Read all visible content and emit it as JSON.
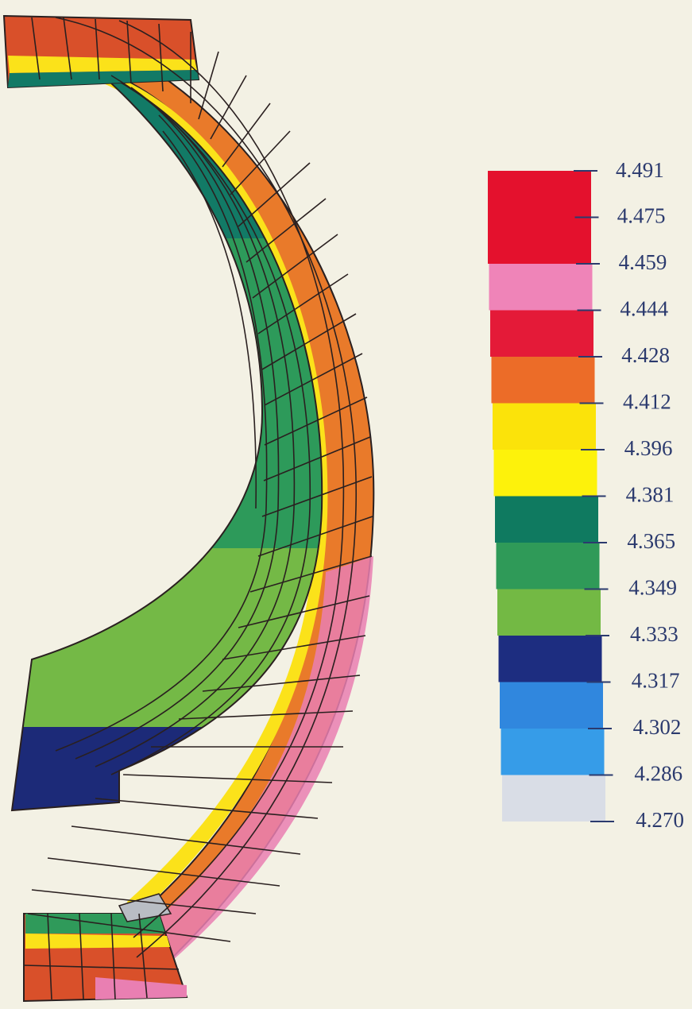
{
  "legend": {
    "values": [
      "4.491",
      "4.475",
      "4.459",
      "4.444",
      "4.428",
      "4.412",
      "4.396",
      "4.381",
      "4.365",
      "4.349",
      "4.333",
      "4.317",
      "4.302",
      "4.286",
      "4.270"
    ],
    "band_colors": [
      "#e4112d",
      "#ef84b8",
      "#e41a38",
      "#ec6c28",
      "#fbe30a",
      "#fdf20b",
      "#0f7a60",
      "#2f9a58",
      "#73b944",
      "#1d2d80",
      "#3087de",
      "#369ce8",
      "#d9dde6"
    ]
  },
  "model": {
    "colors": {
      "outer_shell": "#e97a2a",
      "outer_shell_lower": "#e9797e",
      "shell_pink_bottom": "#e97fb2",
      "inner_strip": "#fbe21a",
      "dark_green": "#127a66",
      "mid_green": "#2d9a5a",
      "light_green": "#74b946",
      "navy": "#1c2a78",
      "blue": "#2f86dc",
      "grid_line": "#2a2020",
      "top_face": "#d9502a",
      "gray_cell": "#b9bdc4"
    }
  }
}
